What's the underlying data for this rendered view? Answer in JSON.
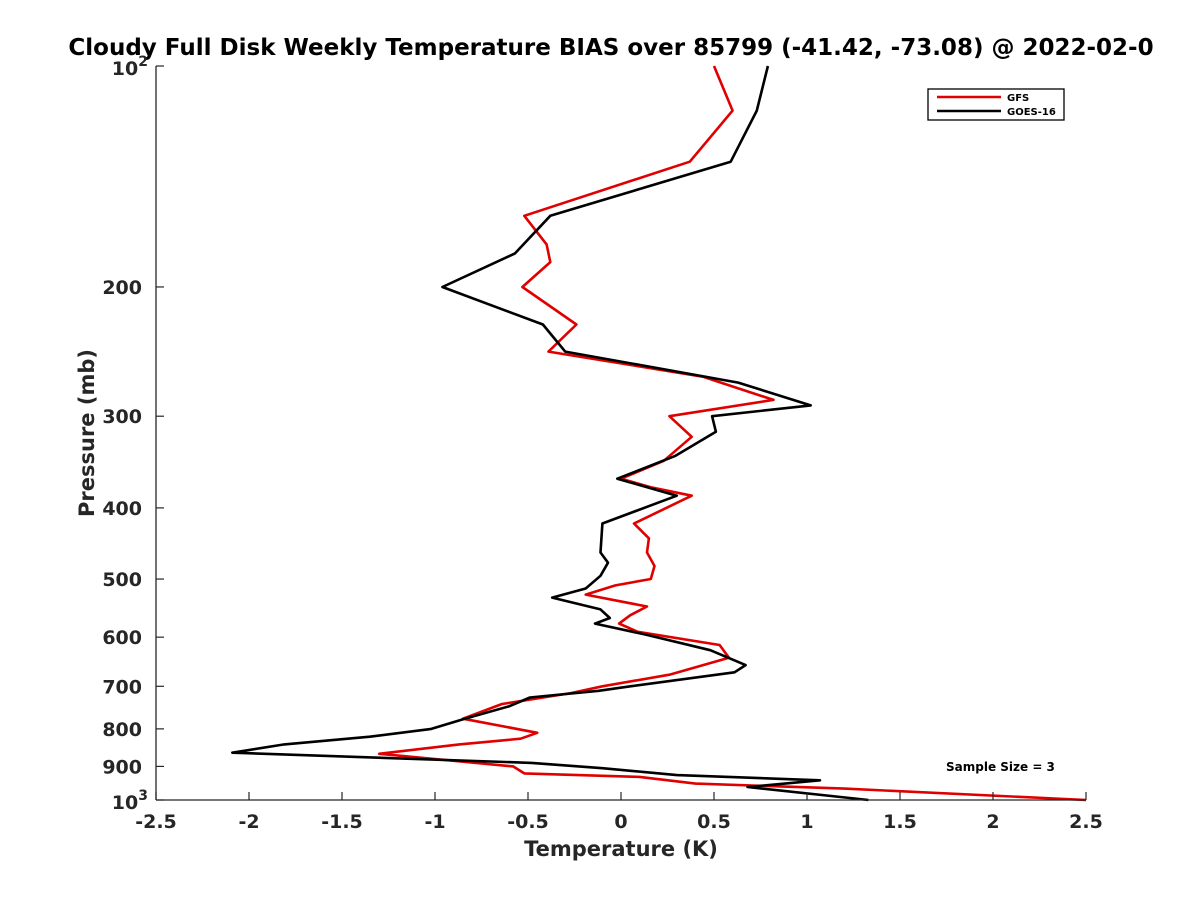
{
  "chart_data": {
    "type": "line",
    "title": "Cloudy Full Disk Weekly Temperature BIAS over 85799 (-41.42, -73.08) @ 2022-02-0",
    "xlabel": "Temperature (K)",
    "ylabel": "Pressure (mb)",
    "xlim": [
      -2.5,
      2.5
    ],
    "ylim": [
      100,
      1000
    ],
    "y_scale": "log",
    "y_reversed": true,
    "x_ticks": [
      "-2.5",
      "-2",
      "-1.5",
      "-1",
      "-0.5",
      "0",
      "0.5",
      "1",
      "1.5",
      "2",
      "2.5"
    ],
    "y_ticks": [
      {
        "value": 100,
        "base": "10",
        "exp": "2"
      },
      {
        "value": 200,
        "label": "200"
      },
      {
        "value": 300,
        "label": "300"
      },
      {
        "value": 400,
        "label": "400"
      },
      {
        "value": 500,
        "label": "500"
      },
      {
        "value": 600,
        "label": "600"
      },
      {
        "value": 700,
        "label": "700"
      },
      {
        "value": 800,
        "label": "800"
      },
      {
        "value": 900,
        "label": "900"
      },
      {
        "value": 1000,
        "base": "10",
        "exp": "3"
      }
    ],
    "grid": false,
    "legend_position": "top-right",
    "annotation": "Sample Size = 3",
    "series": [
      {
        "name": "GFS",
        "color": "#e00000",
        "points": [
          [
            0.5,
            100
          ],
          [
            0.6,
            115
          ],
          [
            0.37,
            135
          ],
          [
            -0.52,
            160
          ],
          [
            -0.4,
            175
          ],
          [
            -0.38,
            185
          ],
          [
            -0.53,
            200
          ],
          [
            -0.24,
            225
          ],
          [
            -0.39,
            245
          ],
          [
            0.44,
            265
          ],
          [
            0.82,
            285
          ],
          [
            0.26,
            300
          ],
          [
            0.38,
            320
          ],
          [
            0.23,
            345
          ],
          [
            0.0,
            365
          ],
          [
            0.16,
            375
          ],
          [
            0.38,
            385
          ],
          [
            0.07,
            420
          ],
          [
            0.15,
            440
          ],
          [
            0.14,
            460
          ],
          [
            0.18,
            480
          ],
          [
            0.16,
            500
          ],
          [
            -0.03,
            510
          ],
          [
            -0.19,
            525
          ],
          [
            0.14,
            545
          ],
          [
            0.05,
            560
          ],
          [
            -0.01,
            575
          ],
          [
            0.09,
            590
          ],
          [
            0.53,
            615
          ],
          [
            0.58,
            640
          ],
          [
            0.26,
            675
          ],
          [
            -0.1,
            700
          ],
          [
            -0.27,
            715
          ],
          [
            -0.64,
            740
          ],
          [
            -0.85,
            775
          ],
          [
            -0.45,
            810
          ],
          [
            -0.54,
            825
          ],
          [
            -0.87,
            840
          ],
          [
            -1.3,
            865
          ],
          [
            -0.58,
            900
          ],
          [
            -0.52,
            920
          ],
          [
            0.1,
            930
          ],
          [
            0.4,
            950
          ],
          [
            1.2,
            965
          ],
          [
            2.5,
            1000
          ]
        ]
      },
      {
        "name": "GOES-16",
        "color": "#000000",
        "points": [
          [
            0.79,
            100
          ],
          [
            0.73,
            115
          ],
          [
            0.59,
            135
          ],
          [
            -0.38,
            160
          ],
          [
            -0.57,
            180
          ],
          [
            -0.96,
            200
          ],
          [
            -0.42,
            225
          ],
          [
            -0.3,
            245
          ],
          [
            0.63,
            270
          ],
          [
            1.02,
            290
          ],
          [
            0.49,
            300
          ],
          [
            0.51,
            315
          ],
          [
            0.29,
            340
          ],
          [
            -0.02,
            365
          ],
          [
            0.3,
            385
          ],
          [
            -0.1,
            420
          ],
          [
            -0.11,
            460
          ],
          [
            -0.07,
            475
          ],
          [
            -0.11,
            495
          ],
          [
            -0.19,
            515
          ],
          [
            -0.37,
            530
          ],
          [
            -0.11,
            550
          ],
          [
            -0.06,
            565
          ],
          [
            -0.14,
            575
          ],
          [
            0.13,
            595
          ],
          [
            0.48,
            625
          ],
          [
            0.67,
            655
          ],
          [
            0.61,
            670
          ],
          [
            0.05,
            700
          ],
          [
            -0.12,
            710
          ],
          [
            -0.49,
            725
          ],
          [
            -0.6,
            745
          ],
          [
            -0.84,
            775
          ],
          [
            -1.02,
            800
          ],
          [
            -1.35,
            820
          ],
          [
            -1.81,
            840
          ],
          [
            -2.09,
            862
          ],
          [
            -0.48,
            890
          ],
          [
            -0.1,
            905
          ],
          [
            0.3,
            925
          ],
          [
            1.07,
            940
          ],
          [
            0.68,
            960
          ],
          [
            1.33,
            1000
          ]
        ]
      }
    ]
  }
}
